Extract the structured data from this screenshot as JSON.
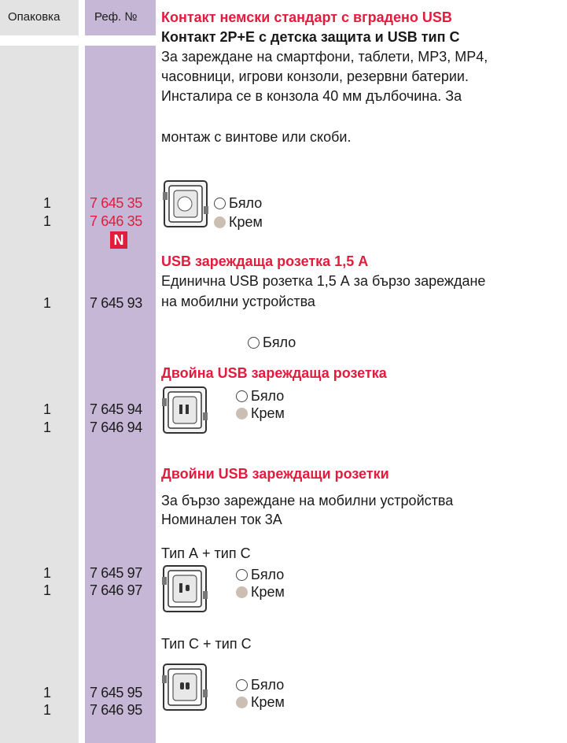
{
  "header": {
    "pack_label": "Опаковка",
    "ref_label": "Реф. №",
    "title": "Контакт немски стандарт с вградено USB"
  },
  "sections": [
    {
      "subtitle": "Контакт 2P+E с детска защита и USB тип C",
      "description": [
        "За зареждане на смартфони, таблети, MP3, MP4,",
        "часовници, игрови конзоли, резервни батерии.",
        "Инсталира се в конзола 40 мм дълбочина. За",
        "монтаж с винтове или скоби."
      ],
      "rows": [
        {
          "pack": 1,
          "ref": "7 645 35"
        },
        {
          "pack": 1,
          "ref": "7 646 35"
        }
      ],
      "badge": "N",
      "variants": [
        "Бяло",
        "Крем"
      ]
    },
    {
      "title": "USB зареждаща розетка 1,5 А",
      "description": [
        "Единична USB розетка 1,5 А за бързо зареждане",
        "на мобилни устройства"
      ],
      "rows": [
        {
          "pack": 1,
          "ref": "7 645 93"
        }
      ],
      "variants": [
        "Бяло"
      ]
    },
    {
      "title": "Двойна USB зареждаща розетка",
      "rows": [
        {
          "pack": 1,
          "ref": "7 645 94"
        },
        {
          "pack": 1,
          "ref": "7 646 94"
        }
      ],
      "variants": [
        "Бяло",
        "Крем"
      ]
    },
    {
      "title": "Двойни USB зареждащи розетки",
      "description": [
        "За бързо зареждане на мобилни устройства",
        "Номинален ток 3А"
      ],
      "subsections": [
        {
          "label": "Тип А + тип С",
          "rows": [
            {
              "pack": 1,
              "ref": "7 645 97"
            },
            {
              "pack": 1,
              "ref": "7 646 97"
            }
          ],
          "variants": [
            "Бяло",
            "Крем"
          ]
        },
        {
          "label": "Тип С + тип С",
          "rows": [
            {
              "pack": 1,
              "ref": "7 645 95"
            },
            {
              "pack": 1,
              "ref": "7 646 95"
            }
          ],
          "variants": [
            "Бяло",
            "Крем"
          ]
        }
      ]
    }
  ]
}
